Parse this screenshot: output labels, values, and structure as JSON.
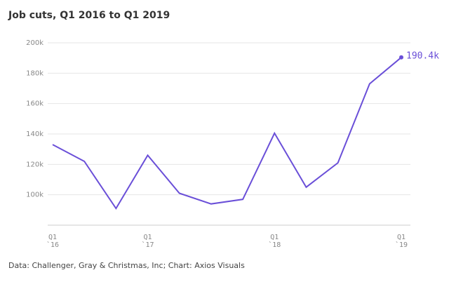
{
  "chart_data": {
    "type": "line",
    "title": "Job cuts, Q1 2016 to Q1 2019",
    "source": "Data: Challenger, Gray & Christmas, Inc; Chart: Axios Visuals",
    "categories": [
      "Q1 `16",
      null,
      null,
      "Q1 `17",
      null,
      null,
      null,
      "Q1 `18",
      null,
      null,
      null,
      "Q1 `19"
    ],
    "values": [
      133,
      122,
      91,
      126,
      101,
      94,
      97,
      140.5,
      105,
      121,
      173,
      190.4
    ],
    "value_labels": [
      null,
      null,
      null,
      null,
      null,
      null,
      null,
      null,
      null,
      null,
      null,
      "190.4k"
    ],
    "color": "#6a4fd8",
    "ylim": [
      80,
      200
    ],
    "yticks": [
      {
        "value": 100,
        "label": "100k"
      },
      {
        "value": 120,
        "label": "120k"
      },
      {
        "value": 140,
        "label": "140k"
      },
      {
        "value": 160,
        "label": "160k"
      },
      {
        "value": 180,
        "label": "180k"
      },
      {
        "value": 200,
        "label": "200k"
      }
    ],
    "grid": true
  }
}
